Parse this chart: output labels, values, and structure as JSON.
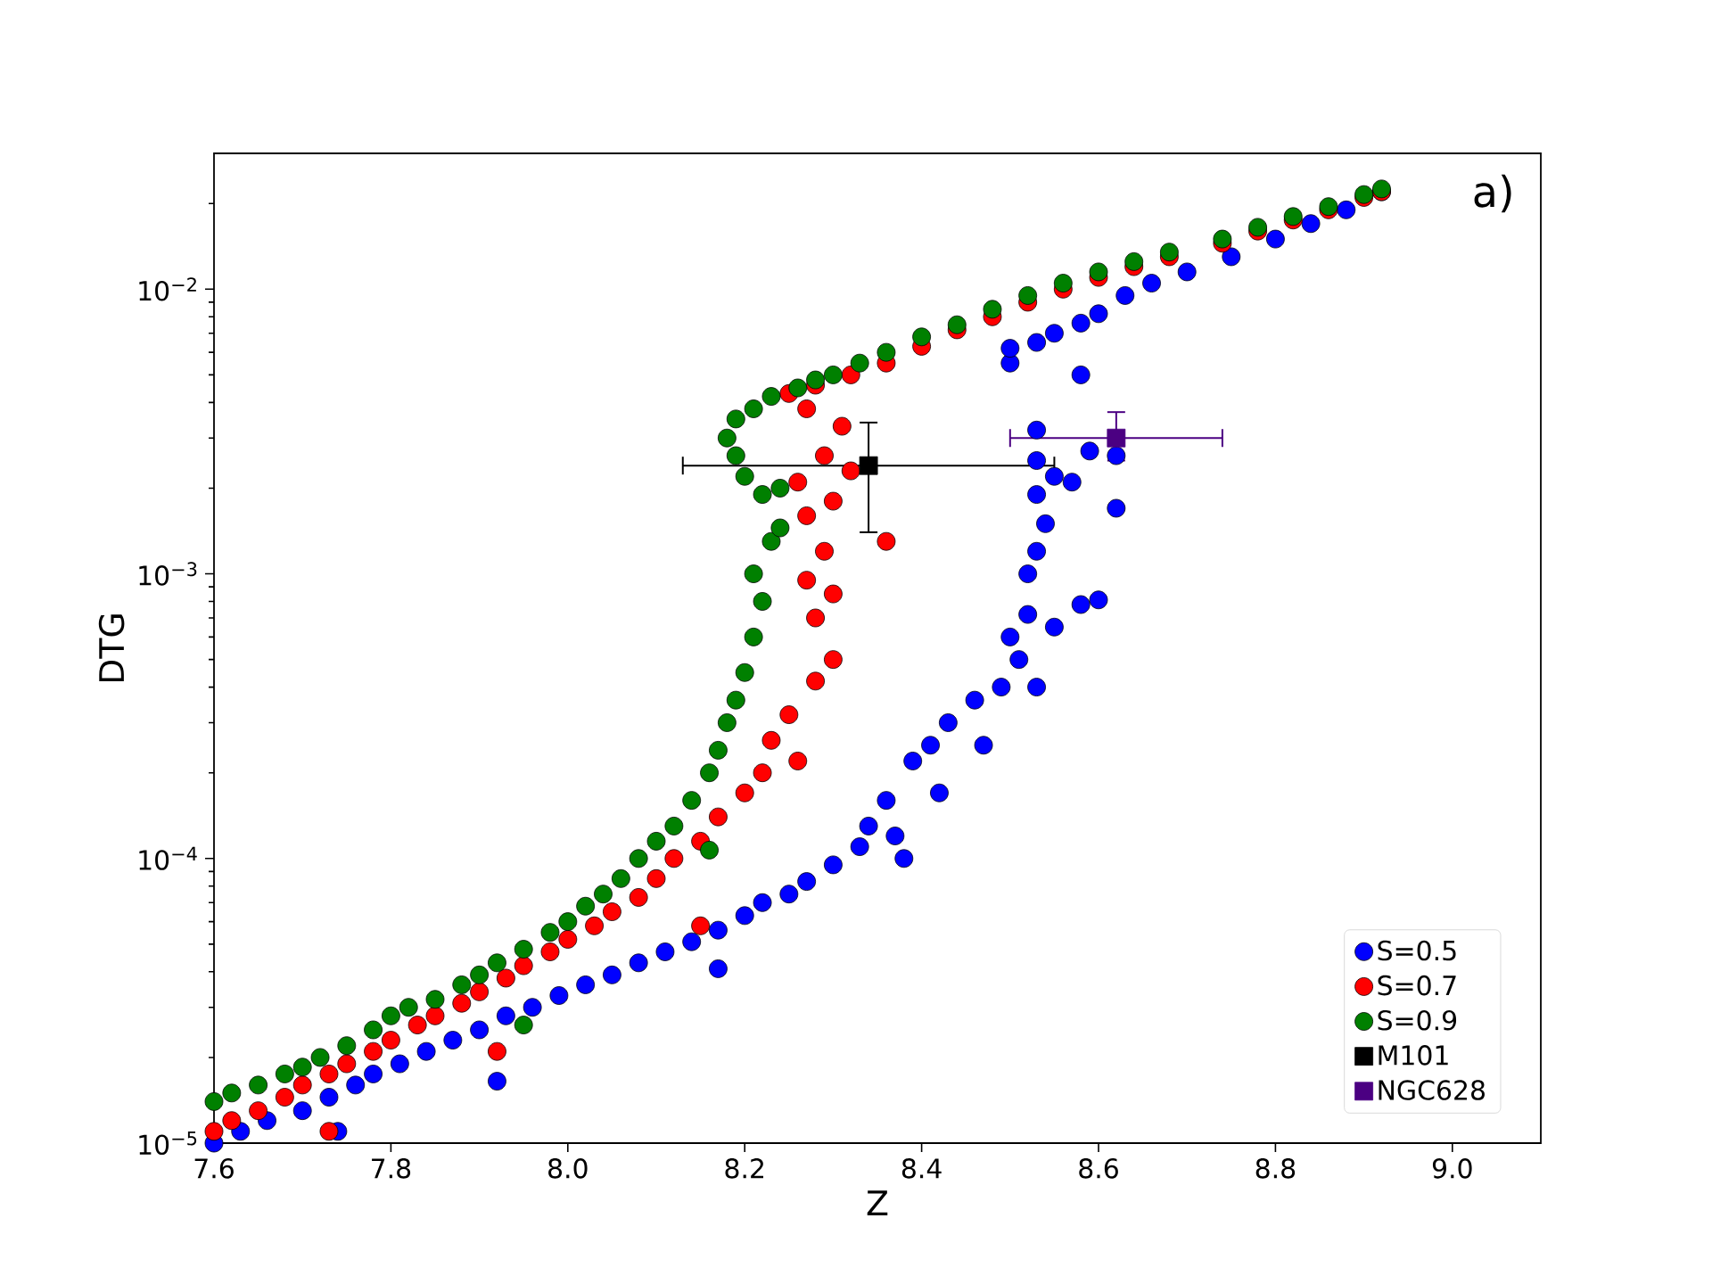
{
  "chart_data": {
    "type": "scatter",
    "xlabel": "Z",
    "ylabel": "DTG",
    "log": "y",
    "marker": "circle",
    "legend": "bottom right",
    "xlim": [
      7.6,
      9.1
    ],
    "ylim": [
      1e-05,
      0.03
    ],
    "xticks": [
      7.6,
      7.8,
      {
        "value": 8,
        "label": "8.0"
      },
      8.2,
      8.4,
      8.6,
      8.8,
      {
        "value": 9,
        "label": "9.0"
      }
    ],
    "yticks": [
      {
        "value": 1e-05,
        "label": "10$^{−5}$"
      },
      {
        "value": 0.0001,
        "label": "10$^{−4}$"
      },
      {
        "value": 0.001,
        "label": "10$^{−3}$"
      },
      {
        "value": 0.01,
        "label": "10$^{−2}$"
      },
      {
        "value": 2e-05,
        "label": null
      },
      {
        "value": 3e-05,
        "label": null
      },
      {
        "value": 4e-05,
        "label": null
      },
      {
        "value": 5e-05,
        "label": null
      },
      {
        "value": 6e-05,
        "label": null
      },
      {
        "value": 7e-05,
        "label": null
      },
      {
        "value": 8e-05,
        "label": null
      },
      {
        "value": 9e-05,
        "label": null
      },
      {
        "value": 0.0002,
        "label": null
      },
      {
        "value": 0.0003,
        "label": null
      },
      {
        "value": 0.0004,
        "label": null
      },
      {
        "value": 0.0005,
        "label": null
      },
      {
        "value": 0.0006,
        "label": null
      },
      {
        "value": 0.0007,
        "label": null
      },
      {
        "value": 0.0008,
        "label": null
      },
      {
        "value": 0.0009,
        "label": null
      },
      {
        "value": 0.002,
        "label": null
      },
      {
        "value": 0.003,
        "label": null
      },
      {
        "value": 0.004,
        "label": null
      },
      {
        "value": 0.005,
        "label": null
      },
      {
        "value": 0.006,
        "label": null
      },
      {
        "value": 0.007,
        "label": null
      },
      {
        "value": 0.008,
        "label": null
      },
      {
        "value": 0.009,
        "label": null
      },
      {
        "value": 0.02,
        "label": null
      }
    ],
    "annotations": [
      "a)"
    ],
    "series": [
      {
        "name": "S=0.5",
        "color": "#0000ff",
        "x": [
          7.6,
          7.63,
          7.66,
          7.7,
          7.73,
          7.76,
          7.78,
          7.81,
          7.84,
          7.87,
          7.9,
          7.93,
          7.96,
          7.99,
          8.02,
          8.05,
          8.08,
          8.11,
          8.14,
          8.17,
          8.2,
          8.22,
          8.25,
          8.27,
          8.3,
          8.33,
          8.34,
          8.36,
          8.37,
          8.38,
          8.39,
          8.41,
          8.42,
          8.43,
          8.46,
          8.47,
          8.49,
          8.51,
          8.53,
          8.5,
          8.52,
          8.55,
          8.58,
          8.6,
          8.52,
          8.53,
          8.54,
          8.53,
          8.55,
          8.53,
          8.53,
          8.57,
          8.59,
          8.62,
          8.62,
          8.58,
          8.5,
          8.5,
          8.53,
          8.55,
          8.58,
          8.6,
          8.63,
          8.66,
          8.7,
          8.75,
          8.8,
          8.84,
          8.88,
          8.92,
          7.74,
          7.92,
          8.17
        ],
        "values": [
          1e-05,
          1.1e-05,
          1.2e-05,
          1.3e-05,
          1.45e-05,
          1.6e-05,
          1.75e-05,
          1.9e-05,
          2.1e-05,
          2.3e-05,
          2.5e-05,
          2.8e-05,
          3e-05,
          3.3e-05,
          3.6e-05,
          3.9e-05,
          4.3e-05,
          4.7e-05,
          5.1e-05,
          5.6e-05,
          6.3e-05,
          7e-05,
          7.5e-05,
          8.3e-05,
          9.5e-05,
          0.00011,
          0.00013,
          0.00016,
          0.00012,
          0.0001,
          0.00022,
          0.00025,
          0.00017,
          0.0003,
          0.00036,
          0.00025,
          0.0004,
          0.0005,
          0.0004,
          0.0006,
          0.00072,
          0.00065,
          0.00078,
          0.00081,
          0.001,
          0.0012,
          0.0015,
          0.0019,
          0.0022,
          0.0025,
          0.0032,
          0.0021,
          0.0027,
          0.0017,
          0.0026,
          0.005,
          0.0055,
          0.0062,
          0.0065,
          0.007,
          0.0076,
          0.0082,
          0.0095,
          0.0105,
          0.0115,
          0.013,
          0.015,
          0.017,
          0.019,
          0.022,
          1.1e-05,
          1.65e-05,
          4.1e-05
        ]
      },
      {
        "name": "S=0.7",
        "color": "#ff0000",
        "x": [
          7.6,
          7.62,
          7.65,
          7.68,
          7.7,
          7.73,
          7.75,
          7.78,
          7.8,
          7.83,
          7.85,
          7.88,
          7.9,
          7.93,
          7.95,
          7.98,
          8.0,
          8.03,
          8.05,
          8.08,
          8.1,
          8.12,
          8.15,
          8.17,
          8.2,
          8.22,
          8.23,
          8.25,
          8.26,
          8.28,
          8.3,
          8.28,
          8.3,
          8.27,
          8.29,
          8.36,
          8.27,
          8.3,
          8.26,
          8.32,
          8.29,
          8.31,
          8.27,
          8.25,
          8.28,
          8.32,
          8.36,
          8.4,
          8.44,
          8.48,
          8.52,
          8.56,
          8.6,
          8.64,
          8.68,
          8.74,
          8.78,
          8.82,
          8.86,
          8.9,
          8.92,
          7.73,
          7.92,
          8.15
        ],
        "values": [
          1.1e-05,
          1.2e-05,
          1.3e-05,
          1.45e-05,
          1.6e-05,
          1.75e-05,
          1.9e-05,
          2.1e-05,
          2.3e-05,
          2.6e-05,
          2.8e-05,
          3.1e-05,
          3.4e-05,
          3.8e-05,
          4.2e-05,
          4.7e-05,
          5.2e-05,
          5.8e-05,
          6.5e-05,
          7.3e-05,
          8.5e-05,
          0.0001,
          0.000115,
          0.00014,
          0.00017,
          0.0002,
          0.00026,
          0.00032,
          0.00022,
          0.00042,
          0.0005,
          0.0007,
          0.00085,
          0.00095,
          0.0012,
          0.0013,
          0.0016,
          0.0018,
          0.0021,
          0.0023,
          0.0026,
          0.0033,
          0.0038,
          0.0043,
          0.0046,
          0.005,
          0.0055,
          0.0063,
          0.0072,
          0.008,
          0.009,
          0.01,
          0.011,
          0.012,
          0.013,
          0.0145,
          0.016,
          0.0175,
          0.019,
          0.021,
          0.022,
          1.1e-05,
          2.1e-05,
          5.8e-05
        ]
      },
      {
        "name": "S=0.9",
        "color": "#008000",
        "x": [
          7.6,
          7.62,
          7.65,
          7.68,
          7.7,
          7.72,
          7.75,
          7.78,
          7.8,
          7.82,
          7.85,
          7.88,
          7.9,
          7.92,
          7.95,
          7.98,
          8.0,
          8.02,
          8.04,
          8.06,
          8.08,
          8.1,
          8.12,
          8.14,
          8.16,
          8.17,
          8.18,
          8.19,
          8.2,
          8.21,
          8.22,
          8.21,
          8.23,
          8.24,
          8.22,
          8.24,
          8.2,
          8.19,
          8.18,
          8.19,
          8.21,
          8.23,
          8.26,
          8.28,
          8.3,
          8.33,
          8.36,
          8.4,
          8.44,
          8.48,
          8.52,
          8.56,
          8.6,
          8.64,
          8.68,
          8.74,
          8.78,
          8.82,
          8.86,
          8.9,
          8.92,
          7.95,
          8.16
        ],
        "values": [
          1.4e-05,
          1.5e-05,
          1.6e-05,
          1.75e-05,
          1.85e-05,
          2e-05,
          2.2e-05,
          2.5e-05,
          2.8e-05,
          3e-05,
          3.2e-05,
          3.6e-05,
          3.9e-05,
          4.3e-05,
          4.8e-05,
          5.5e-05,
          6e-05,
          6.8e-05,
          7.5e-05,
          8.5e-05,
          0.0001,
          0.000115,
          0.00013,
          0.00016,
          0.0002,
          0.00024,
          0.0003,
          0.00036,
          0.00045,
          0.0006,
          0.0008,
          0.001,
          0.0013,
          0.00145,
          0.0019,
          0.002,
          0.0022,
          0.0026,
          0.003,
          0.0035,
          0.0038,
          0.0042,
          0.0045,
          0.0048,
          0.005,
          0.0055,
          0.006,
          0.0068,
          0.0075,
          0.0085,
          0.0095,
          0.0105,
          0.0115,
          0.0125,
          0.0135,
          0.015,
          0.0165,
          0.018,
          0.0195,
          0.0215,
          0.0225,
          2.6e-05,
          0.000107
        ]
      },
      {
        "name": "M101",
        "color": "#000000",
        "marker": "square",
        "x": [
          8.34
        ],
        "values": [
          0.0024
        ],
        "errors": [
          [
            0.0014,
            0.0034
          ]
        ],
        "xerrors": [
          [
            8.13,
            8.55
          ]
        ]
      },
      {
        "name": "NGC628",
        "color": "#4b0082",
        "marker": "square",
        "x": [
          8.62
        ],
        "values": [
          0.003
        ],
        "errors": [
          [
            0.0025,
            0.0037
          ]
        ],
        "xerrors": [
          [
            8.5,
            8.74
          ]
        ]
      }
    ]
  }
}
